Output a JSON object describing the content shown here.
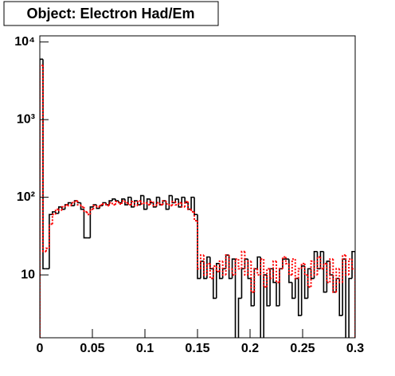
{
  "chart_data": {
    "type": "histogram",
    "title": "Object: Electron Had/Em",
    "bins": [
      0,
      0.003,
      0.006,
      0.009,
      0.012,
      0.015,
      0.018,
      0.021,
      0.024,
      0.027,
      0.03,
      0.033,
      0.036,
      0.039,
      0.042,
      0.045,
      0.048,
      0.051,
      0.054,
      0.057,
      0.06,
      0.063,
      0.066,
      0.069,
      0.072,
      0.075,
      0.078,
      0.081,
      0.084,
      0.087,
      0.09,
      0.093,
      0.096,
      0.099,
      0.102,
      0.105,
      0.108,
      0.111,
      0.114,
      0.117,
      0.12,
      0.123,
      0.126,
      0.129,
      0.132,
      0.135,
      0.138,
      0.141,
      0.144,
      0.147,
      0.15,
      0.153,
      0.156,
      0.159,
      0.162,
      0.165,
      0.168,
      0.171,
      0.174,
      0.177,
      0.18,
      0.183,
      0.186,
      0.189,
      0.192,
      0.195,
      0.198,
      0.201,
      0.204,
      0.207,
      0.21,
      0.213,
      0.216,
      0.219,
      0.222,
      0.225,
      0.228,
      0.231,
      0.234,
      0.237,
      0.24,
      0.243,
      0.246,
      0.249,
      0.252,
      0.255,
      0.258,
      0.261,
      0.264,
      0.267,
      0.27,
      0.273,
      0.276,
      0.279,
      0.282,
      0.285,
      0.288,
      0.291,
      0.294,
      0.297,
      0.3
    ],
    "series": [
      {
        "color": "#000000",
        "linestyle": "solid",
        "values": [
          6000,
          12,
          12,
          60,
          65,
          62,
          75,
          70,
          80,
          85,
          78,
          90,
          85,
          70,
          30,
          30,
          75,
          80,
          72,
          78,
          85,
          80,
          90,
          95,
          90,
          85,
          95,
          80,
          100,
          75,
          90,
          80,
          105,
          70,
          95,
          85,
          75,
          100,
          80,
          90,
          70,
          105,
          85,
          95,
          75,
          100,
          85,
          70,
          100,
          60,
          9,
          15,
          9,
          17,
          12,
          5,
          14,
          9,
          12,
          18,
          9,
          16,
          0,
          5,
          12,
          16,
          9,
          4,
          12,
          17,
          0,
          10,
          4,
          12,
          8,
          4,
          12,
          16,
          16,
          8,
          5,
          9,
          3,
          13,
          5,
          12,
          9,
          20,
          12,
          20,
          6,
          15,
          10,
          6,
          9,
          3,
          16,
          0,
          9,
          20
        ]
      },
      {
        "color": "#ff0000",
        "linestyle": "dotted",
        "values": [
          5000,
          20,
          22,
          45,
          60,
          70,
          68,
          75,
          80,
          78,
          85,
          90,
          80,
          75,
          65,
          60,
          70,
          78,
          75,
          80,
          82,
          78,
          85,
          80,
          88,
          82,
          90,
          85,
          80,
          88,
          78,
          90,
          82,
          85,
          80,
          88,
          78,
          85,
          80,
          90,
          82,
          78,
          88,
          80,
          85,
          75,
          88,
          70,
          65,
          50,
          12,
          18,
          10,
          14,
          9,
          13,
          11,
          15,
          10,
          18,
          12,
          10,
          16,
          12,
          20,
          10,
          15,
          6,
          12,
          10,
          16,
          7,
          12,
          9,
          15,
          8,
          12,
          17,
          14,
          10,
          16,
          9,
          12,
          14,
          10,
          7,
          15,
          10,
          17,
          12,
          14,
          8,
          16,
          6,
          12,
          8,
          18,
          10,
          16,
          12
        ]
      }
    ],
    "xlim": [
      0,
      0.3
    ],
    "xticks": [
      0,
      0.05,
      0.1,
      0.15,
      0.2,
      0.25,
      0.3
    ],
    "ylim": [
      1.55,
      12000
    ],
    "ylog": true,
    "yticks": [
      10,
      {
        "value": 100,
        "label": "10²"
      },
      {
        "value": 1000,
        "label": "10³"
      },
      {
        "value": 10000,
        "label": "10⁴"
      }
    ]
  }
}
